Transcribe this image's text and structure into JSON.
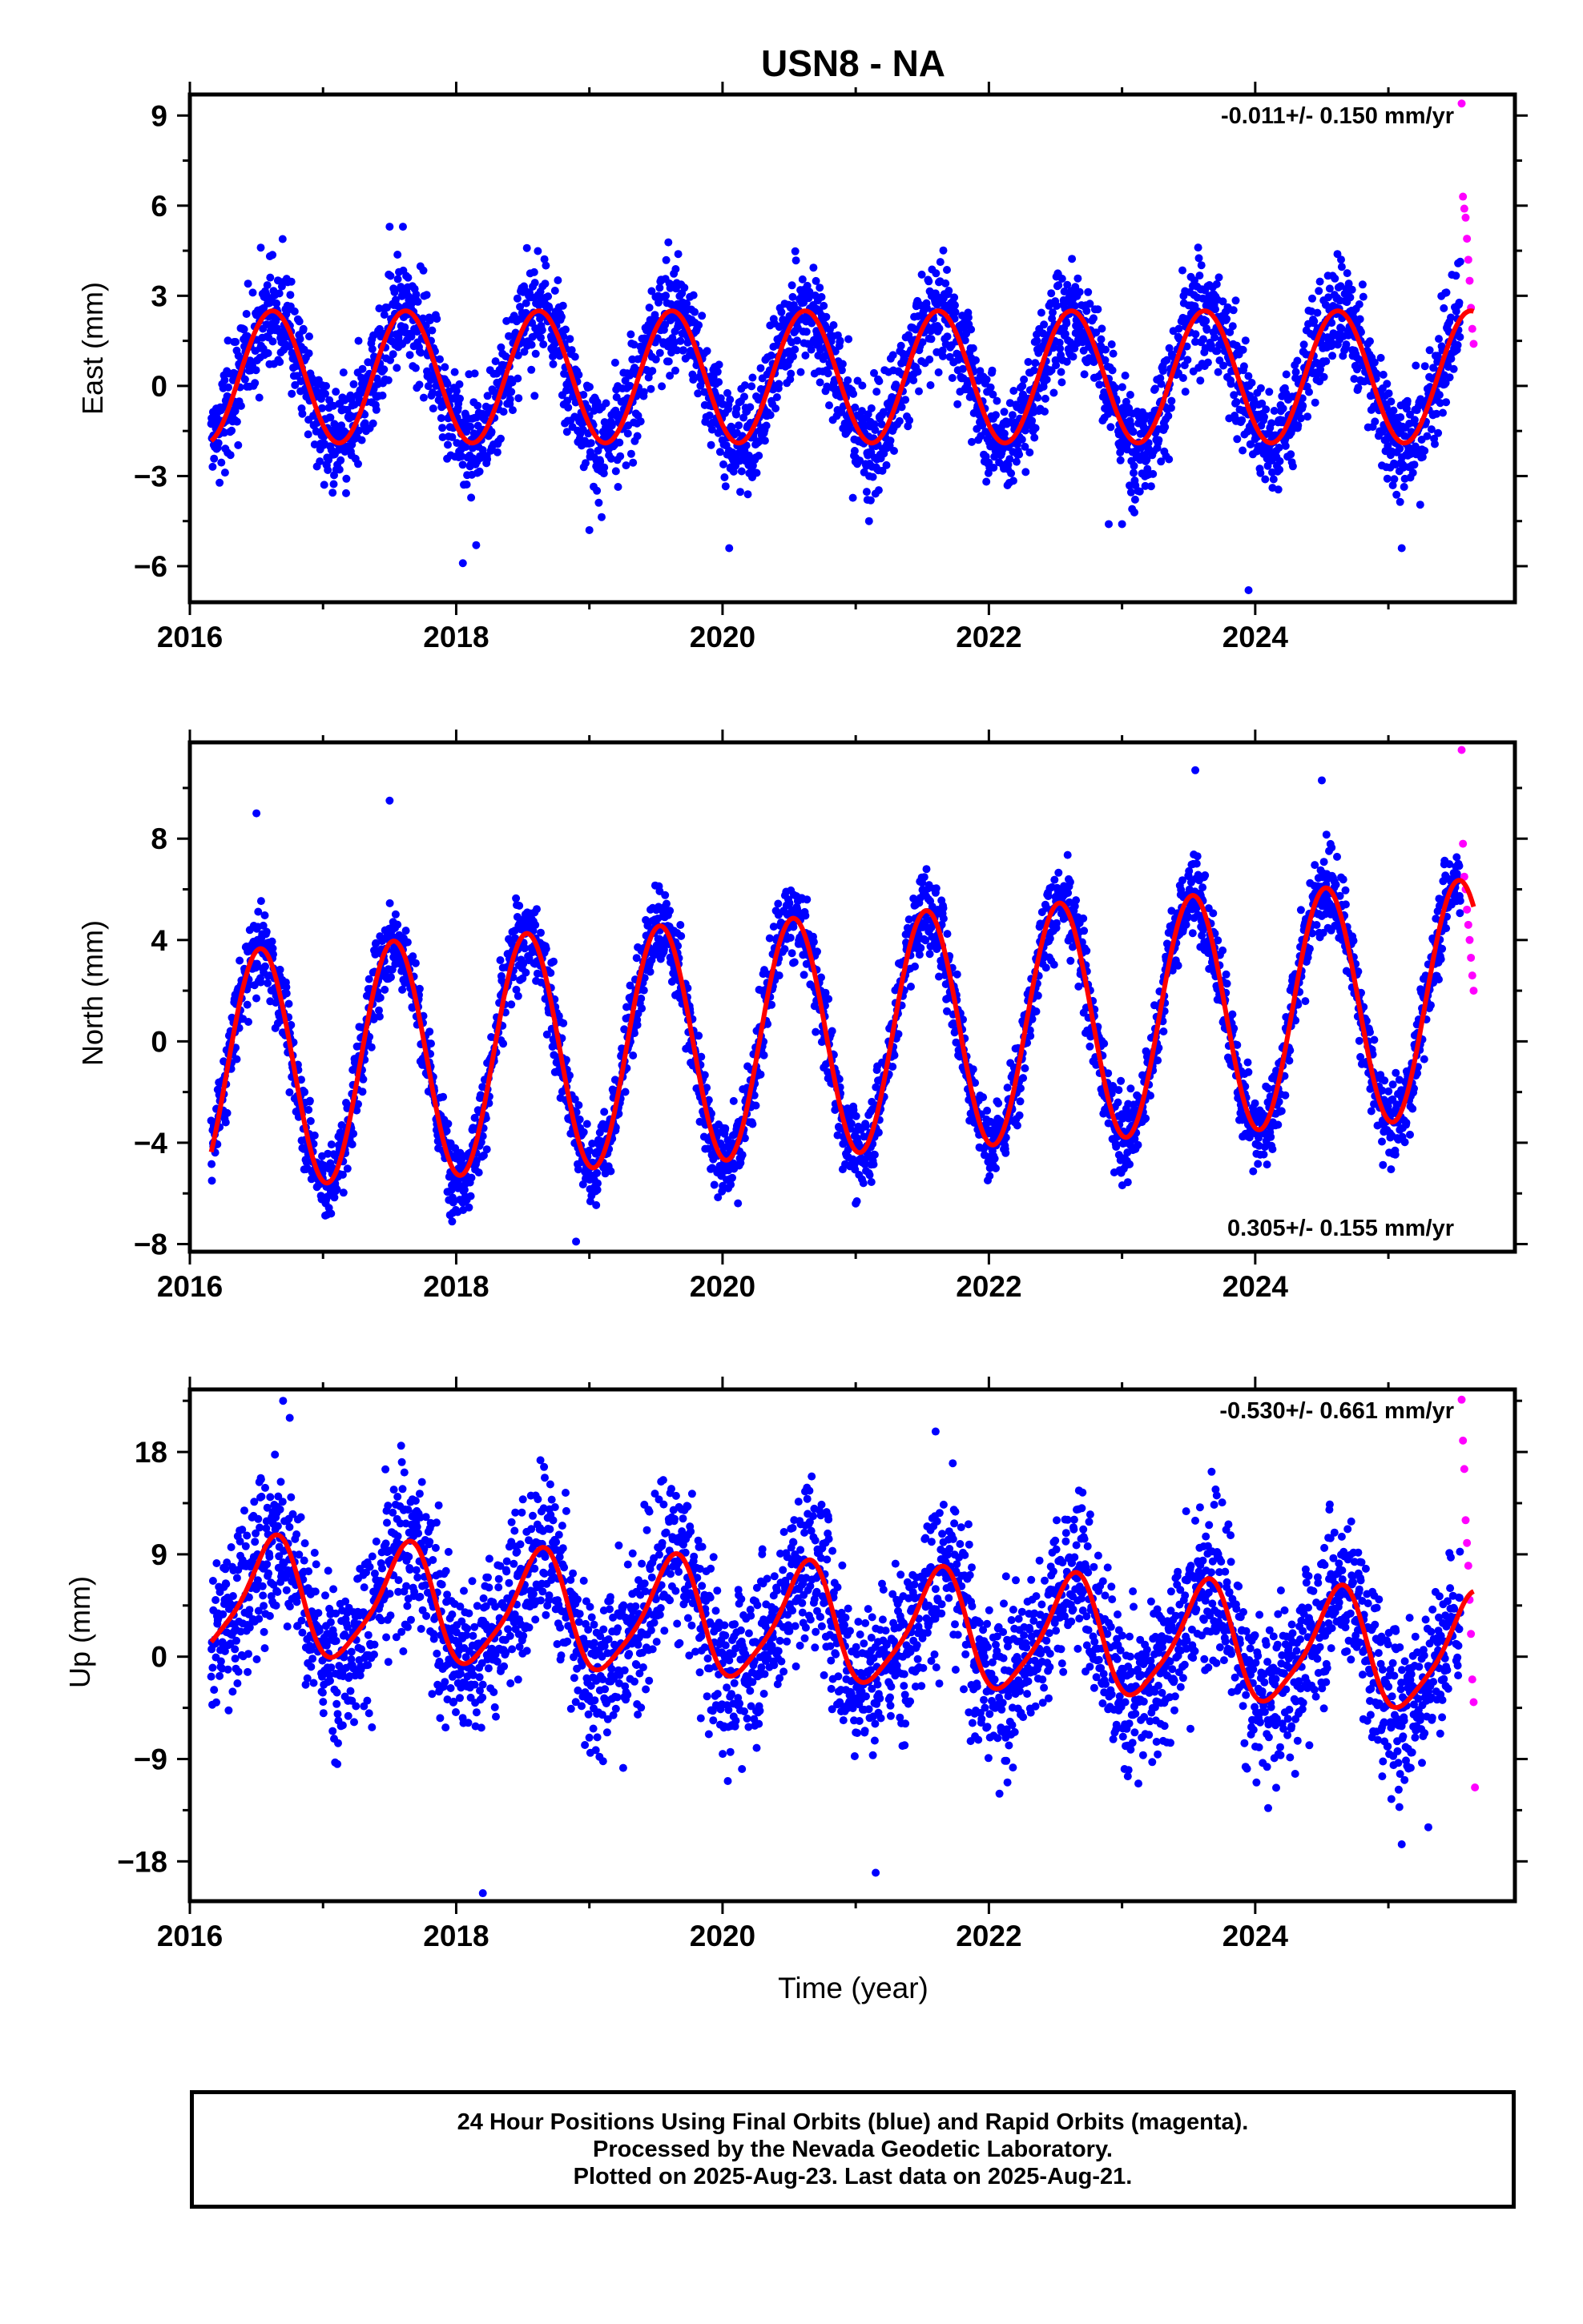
{
  "title": "USN8 - NA",
  "xlabel": "Time (year)",
  "x_ticks": [
    "2016",
    "2018",
    "2020",
    "2022",
    "2024"
  ],
  "legend_colors": {
    "final_orbits": "#0000ff",
    "rapid_orbits": "#ff00ff",
    "model_fit": "#ff0000"
  },
  "chart_data": [
    {
      "type": "scatter",
      "panel": "east",
      "ylabel": "East (mm)",
      "rate_label": "-0.011+/- 0.150 mm/yr",
      "rate_label_position": "top-right",
      "xlim": [
        2016.0,
        2025.95
      ],
      "ylim": [
        -7.2,
        9.7
      ],
      "y_ticks": [
        "9",
        "6",
        "3",
        "0",
        "−3",
        "−6"
      ],
      "y_tick_values": [
        9,
        6,
        3,
        0,
        -3,
        -6
      ],
      "model": {
        "offset": 0.3,
        "rate": 0.0,
        "annual_amp": 2.2,
        "annual_peak": 0.62,
        "semiannual_amp": 0.0,
        "semiannual_peak": 0.0
      },
      "scatter_sd": 1.1,
      "outliers_x": [
        2017.5,
        2017.6,
        2018.05,
        2018.15,
        2019.0,
        2020.05,
        2021.1,
        2022.9,
        2023.0,
        2023.95,
        2025.1
      ],
      "outliers_y": [
        5.3,
        5.3,
        -5.9,
        -5.3,
        -4.8,
        -5.4,
        -4.5,
        -4.6,
        -4.6,
        -6.8,
        -5.4
      ],
      "rapid_x": [
        2025.55,
        2025.56,
        2025.57,
        2025.58,
        2025.59,
        2025.6,
        2025.61,
        2025.62,
        2025.63,
        2025.64
      ],
      "rapid_y": [
        9.4,
        6.3,
        5.9,
        5.6,
        4.9,
        4.2,
        3.5,
        2.6,
        1.9,
        1.4
      ]
    },
    {
      "type": "scatter",
      "panel": "north",
      "ylabel": "North (mm)",
      "rate_label": "0.305+/- 0.155 mm/yr",
      "rate_label_position": "bottom-right",
      "xlim": [
        2016.0,
        2025.95
      ],
      "ylim": [
        -8.3,
        11.8
      ],
      "y_ticks": [
        "8",
        "4",
        "0",
        "−4",
        "−8"
      ],
      "y_tick_values": [
        8,
        4,
        0,
        -4,
        -8
      ],
      "model": {
        "offset": 0.3,
        "rate": 0.3,
        "annual_amp": 4.7,
        "annual_peak": 0.53,
        "semiannual_amp": 0.0,
        "semiannual_peak": 0.0
      },
      "scatter_sd": 1.0,
      "outliers_x": [
        2016.5,
        2017.5,
        2018.9,
        2023.55,
        2024.5,
        2021.0
      ],
      "outliers_y": [
        9.0,
        9.5,
        -7.9,
        10.7,
        10.3,
        -6.4
      ],
      "rapid_x": [
        2025.55,
        2025.56,
        2025.57,
        2025.58,
        2025.59,
        2025.6,
        2025.61,
        2025.62,
        2025.63,
        2025.64
      ],
      "rapid_y": [
        11.5,
        7.8,
        6.5,
        6.0,
        5.2,
        4.6,
        4.0,
        3.3,
        2.6,
        2.0
      ]
    },
    {
      "type": "scatter",
      "panel": "up",
      "ylabel": "Up (mm)",
      "rate_label": "-0.530+/- 0.661 mm/yr",
      "rate_label_position": "top-right",
      "xlim": [
        2016.0,
        2025.95
      ],
      "ylim": [
        -21.5,
        23.5
      ],
      "y_ticks": [
        "18",
        "9",
        "0",
        "−9",
        "−18"
      ],
      "y_tick_values": [
        18,
        9,
        0,
        -9,
        -18
      ],
      "model": {
        "offset": 2.6,
        "rate": -0.55,
        "annual_amp": 5.0,
        "annual_peak": 0.62,
        "semiannual_amp": 1.0,
        "semiannual_peak": 0.2
      },
      "scatter_sd": 4.5,
      "outliers_x": [
        2016.7,
        2016.75,
        2018.2,
        2021.15,
        2021.6,
        2025.1,
        2025.3
      ],
      "outliers_y": [
        22.5,
        21.0,
        -20.8,
        -19.0,
        19.8,
        -16.5,
        -15.0
      ],
      "rapid_x": [
        2025.55,
        2025.56,
        2025.57,
        2025.58,
        2025.59,
        2025.6,
        2025.61,
        2025.62,
        2025.63,
        2025.64,
        2025.65
      ],
      "rapid_y": [
        22.6,
        19.0,
        16.5,
        12.0,
        10.0,
        8.0,
        5.0,
        2.0,
        -2.0,
        -4.0,
        -11.5
      ]
    }
  ],
  "footer": {
    "line1": "24 Hour Positions Using Final Orbits (blue) and Rapid Orbits (magenta).",
    "line2": "Processed by the Nevada Geodetic Laboratory.",
    "line3": "Plotted on 2025-Aug-23. Last data on 2025-Aug-21."
  }
}
